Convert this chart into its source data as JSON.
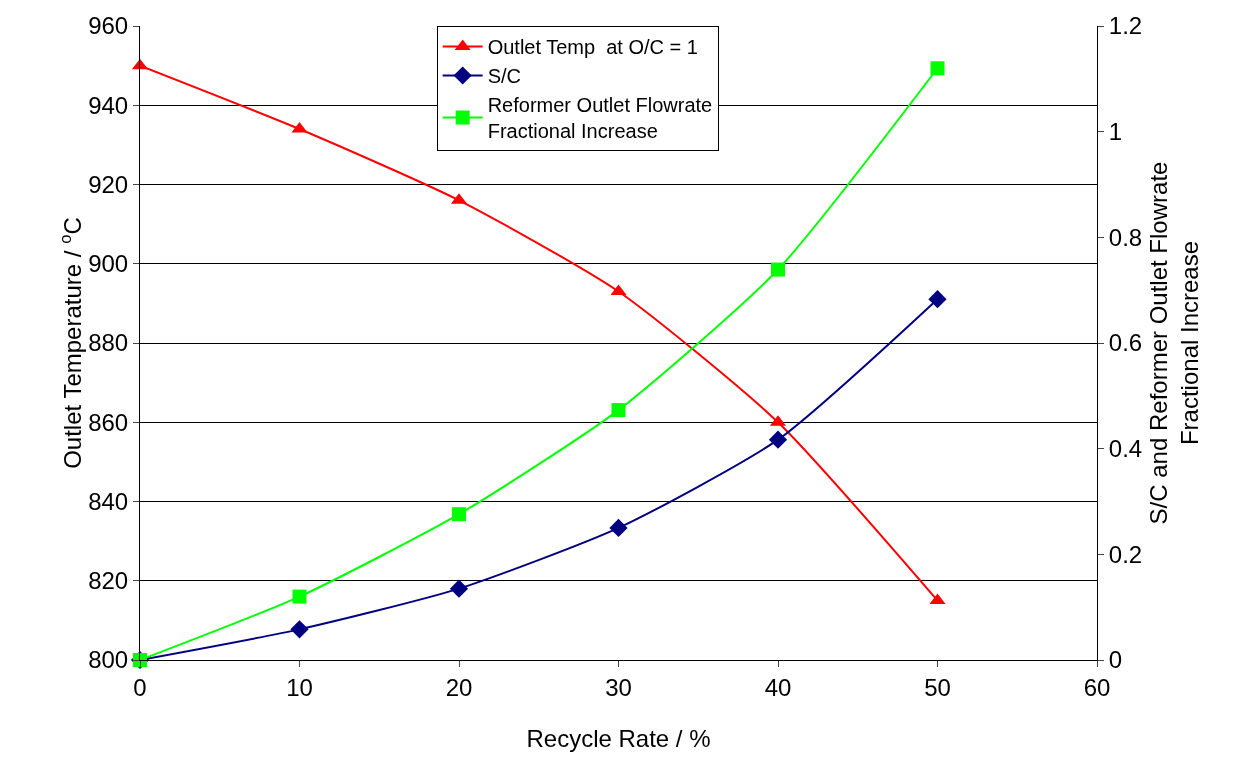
{
  "chart_data": {
    "type": "line",
    "xlabel": "Recycle Rate / %",
    "ylabel": "Outlet Temperature / $^{o}$C",
    "y2label": "S/C and Reformer Outlet Flowrate\nFractional Increase",
    "x": [
      0,
      10,
      20,
      30,
      40,
      50
    ],
    "xlim": [
      0,
      60
    ],
    "xticks": [
      0,
      10,
      20,
      30,
      40,
      50,
      60
    ],
    "ylim": [
      800,
      960
    ],
    "yticks": [
      800,
      820,
      840,
      860,
      880,
      900,
      920,
      940,
      960
    ],
    "y2lim": [
      0,
      1.2
    ],
    "y2ticks": [
      0,
      0.2,
      0.4,
      0.6,
      0.8,
      1,
      1.2
    ],
    "grid": "y",
    "legend": "top",
    "line_style": "solid",
    "series": [
      {
        "name": "Outlet Temp  at O/C = 1",
        "color": "#ff0000",
        "marker": "triangle",
        "values": [
          950,
          934,
          916,
          893,
          860,
          815
        ]
      },
      {
        "name": "S/C",
        "color": "#000080",
        "marker": "diamond",
        "axis": "y2",
        "values": [
          0,
          0.058,
          0.135,
          0.25,
          0.417,
          0.683
        ]
      },
      {
        "name": "Reformer Outlet Flowrate\nFractional Increase",
        "color": "#00ff00",
        "marker": "square",
        "axis": "y2",
        "values": [
          0,
          0.12,
          0.276,
          0.473,
          0.739,
          1.12
        ]
      }
    ]
  }
}
